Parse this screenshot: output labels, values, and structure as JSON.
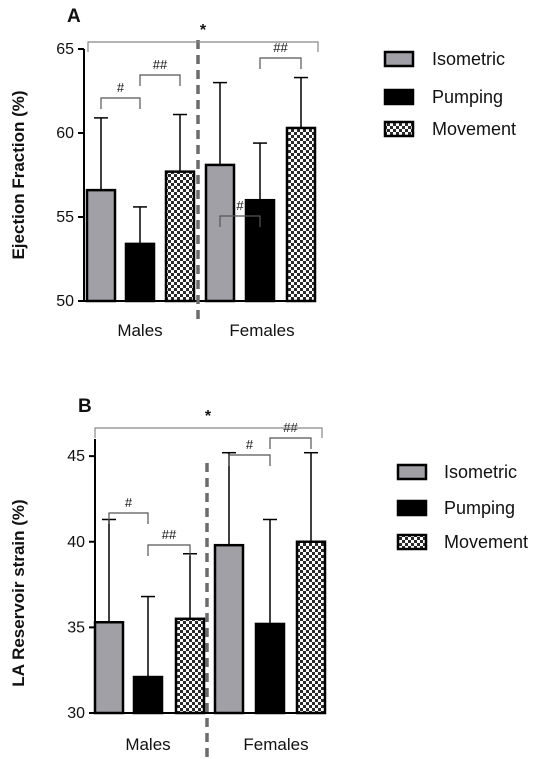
{
  "chart_data": [
    {
      "type": "bar",
      "panel": "A",
      "ylabel": "Ejection Fraction (%)",
      "ylim": [
        50,
        65
      ],
      "yticks": [
        50,
        55,
        60,
        65
      ],
      "groups": [
        "Males",
        "Females"
      ],
      "series": [
        {
          "name": "Isometric",
          "values": [
            56.6,
            58.1
          ],
          "error": [
            4.3,
            4.9
          ],
          "color": "#a0a0a6",
          "pattern": "solid"
        },
        {
          "name": "Pumping",
          "values": [
            53.4,
            56.0
          ],
          "error": [
            2.2,
            3.4
          ],
          "color": "#000000",
          "pattern": "solid"
        },
        {
          "name": "Movement",
          "values": [
            57.7,
            60.3
          ],
          "error": [
            3.4,
            3.0
          ],
          "color": "#555555",
          "pattern": "checker"
        }
      ],
      "annotations": [
        {
          "text": "#",
          "group": "Males",
          "from": 0,
          "to": 1
        },
        {
          "text": "##",
          "group": "Males",
          "from": 1,
          "to": 2
        },
        {
          "text": "#",
          "group": "Females",
          "from": 0,
          "to": 1
        },
        {
          "text": "##",
          "group": "Females",
          "from": 1,
          "to": 2
        },
        {
          "text": "*",
          "span": "all"
        }
      ],
      "divider": "dashed-between-groups",
      "legend_position": "right"
    },
    {
      "type": "bar",
      "panel": "B",
      "ylabel": "LA Reservoir strain (%)",
      "ylim": [
        30,
        46
      ],
      "yticks": [
        30,
        35,
        40,
        45
      ],
      "groups": [
        "Males",
        "Females"
      ],
      "series": [
        {
          "name": "Isometric",
          "values": [
            35.3,
            39.8
          ],
          "error": [
            6.0,
            5.4
          ],
          "color": "#a0a0a6",
          "pattern": "solid"
        },
        {
          "name": "Pumping",
          "values": [
            32.1,
            35.2
          ],
          "error": [
            4.7,
            6.1
          ],
          "color": "#000000",
          "pattern": "solid"
        },
        {
          "name": "Movement",
          "values": [
            35.5,
            40.0
          ],
          "error": [
            3.8,
            5.2
          ],
          "color": "#555555",
          "pattern": "checker"
        }
      ],
      "annotations": [
        {
          "text": "#",
          "group": "Males",
          "from": 0,
          "to": 1
        },
        {
          "text": "##",
          "group": "Males",
          "from": 1,
          "to": 2
        },
        {
          "text": "#",
          "group": "Females",
          "from": 0,
          "to": 1
        },
        {
          "text": "##",
          "group": "Females",
          "from": 1,
          "to": 2
        },
        {
          "text": "*",
          "span": "all"
        }
      ],
      "divider": "dashed-between-groups",
      "legend_position": "right"
    }
  ]
}
